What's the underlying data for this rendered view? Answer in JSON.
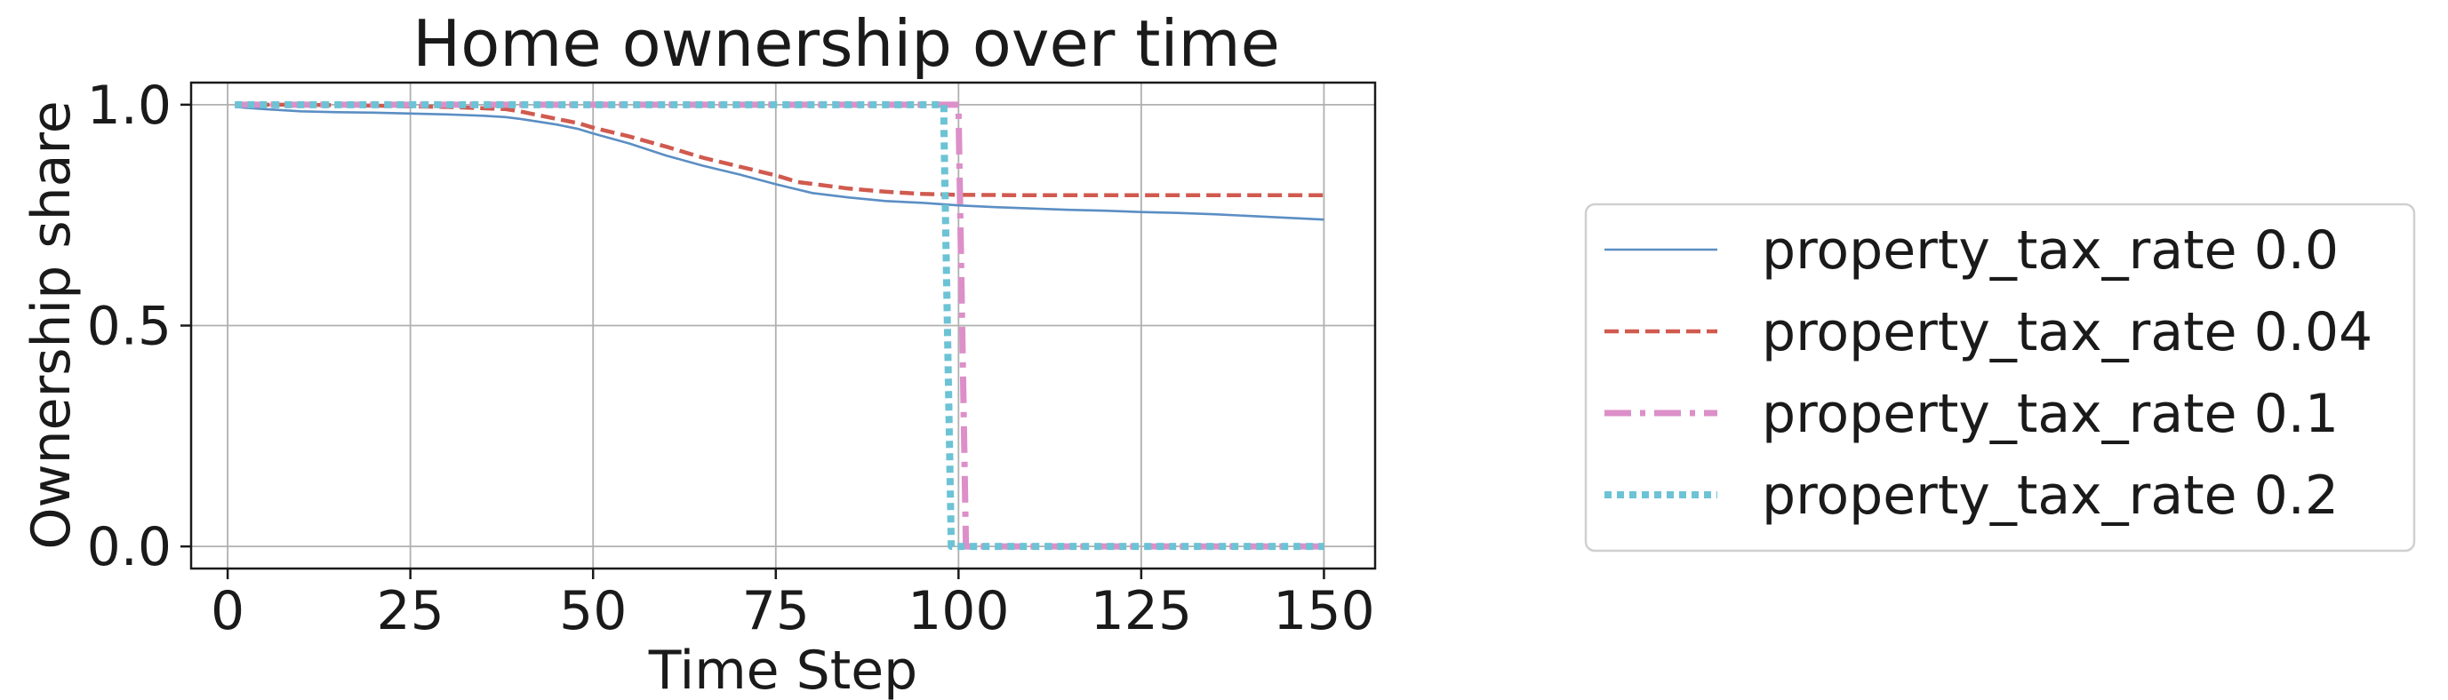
{
  "chart_data": {
    "type": "line",
    "title": "Home ownership over time",
    "xlabel": "Time Step",
    "ylabel": "Ownership share",
    "xlim": [
      -5,
      157
    ],
    "ylim": [
      -0.05,
      1.05
    ],
    "xticks": [
      0,
      25,
      50,
      75,
      100,
      125,
      150
    ],
    "xtick_labels": [
      "0",
      "25",
      "50",
      "75",
      "100",
      "125",
      "150"
    ],
    "yticks": [
      0.0,
      0.5,
      1.0
    ],
    "ytick_labels": [
      "0.0",
      "0.5",
      "1.0"
    ],
    "grid": true,
    "legend_position": "right, outside plot",
    "series": [
      {
        "name": "property_tax_rate 0.0",
        "color": "#5b8ec4",
        "style": "solid",
        "x": [
          1,
          5,
          10,
          15,
          20,
          25,
          30,
          35,
          38,
          40,
          42,
          45,
          48,
          50,
          55,
          60,
          65,
          70,
          75,
          80,
          85,
          90,
          95,
          100,
          105,
          110,
          115,
          120,
          125,
          130,
          135,
          140,
          145,
          150
        ],
        "y": [
          0.995,
          0.99,
          0.985,
          0.983,
          0.982,
          0.98,
          0.978,
          0.975,
          0.972,
          0.968,
          0.963,
          0.955,
          0.945,
          0.935,
          0.912,
          0.885,
          0.862,
          0.842,
          0.82,
          0.8,
          0.79,
          0.782,
          0.778,
          0.772,
          0.768,
          0.765,
          0.762,
          0.76,
          0.757,
          0.755,
          0.752,
          0.748,
          0.744,
          0.74
        ]
      },
      {
        "name": "property_tax_rate 0.04",
        "color": "#d05a4f",
        "style": "dashed",
        "x": [
          1,
          10,
          20,
          30,
          38,
          40,
          42,
          45,
          48,
          50,
          55,
          60,
          65,
          70,
          75,
          78,
          85,
          90,
          95,
          100,
          110,
          120,
          130,
          140,
          150
        ],
        "y": [
          1.0,
          1.0,
          0.998,
          0.995,
          0.99,
          0.985,
          0.978,
          0.968,
          0.958,
          0.948,
          0.928,
          0.905,
          0.88,
          0.86,
          0.84,
          0.825,
          0.81,
          0.803,
          0.798,
          0.796,
          0.795,
          0.795,
          0.795,
          0.795,
          0.795
        ]
      },
      {
        "name": "property_tax_rate 0.1",
        "color": "#dc8fc8",
        "style": "dashdot",
        "x": [
          1,
          100,
          100,
          101,
          101,
          150
        ],
        "y": [
          1.0,
          1.0,
          0.99,
          0.01,
          0.0,
          0.0
        ]
      },
      {
        "name": "property_tax_rate 0.2",
        "color": "#6cc3d5",
        "style": "dotted",
        "x": [
          1,
          98,
          98,
          99,
          99,
          150
        ],
        "y": [
          1.0,
          1.0,
          0.95,
          0.01,
          0.0,
          0.0
        ]
      }
    ]
  }
}
